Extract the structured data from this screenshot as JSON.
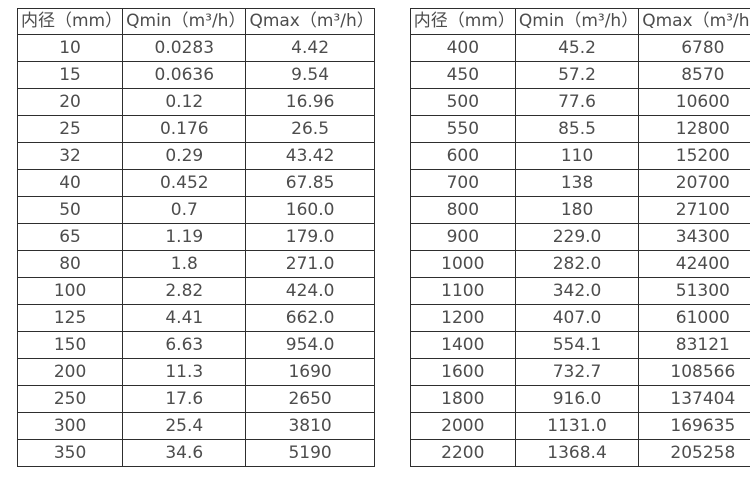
{
  "colors": {
    "background": "#ffffff",
    "border": "#2e2e2e",
    "text": "#4d4d4d"
  },
  "tables": [
    {
      "name": "diameter-flow-table-small",
      "headers": [
        "内径（mm）",
        "Qmin（m³/h）",
        "Qmax（m³/h）"
      ],
      "rows": [
        [
          "10",
          "0.0283",
          "4.42"
        ],
        [
          "15",
          "0.0636",
          "9.54"
        ],
        [
          "20",
          "0.12",
          "16.96"
        ],
        [
          "25",
          "0.176",
          "26.5"
        ],
        [
          "32",
          "0.29",
          "43.42"
        ],
        [
          "40",
          "0.452",
          "67.85"
        ],
        [
          "50",
          "0.7",
          "160.0"
        ],
        [
          "65",
          "1.19",
          "179.0"
        ],
        [
          "80",
          "1.8",
          "271.0"
        ],
        [
          "100",
          "2.82",
          "424.0"
        ],
        [
          "125",
          "4.41",
          "662.0"
        ],
        [
          "150",
          "6.63",
          "954.0"
        ],
        [
          "200",
          "11.3",
          "1690"
        ],
        [
          "250",
          "17.6",
          "2650"
        ],
        [
          "300",
          "25.4",
          "3810"
        ],
        [
          "350",
          "34.6",
          "5190"
        ]
      ]
    },
    {
      "name": "diameter-flow-table-large",
      "headers": [
        "内径（mm）",
        "Qmin（m³/h）",
        "Qmax（m³/h）"
      ],
      "rows": [
        [
          "400",
          "45.2",
          "6780"
        ],
        [
          "450",
          "57.2",
          "8570"
        ],
        [
          "500",
          "77.6",
          "10600"
        ],
        [
          "550",
          "85.5",
          "12800"
        ],
        [
          "600",
          "110",
          "15200"
        ],
        [
          "700",
          "138",
          "20700"
        ],
        [
          "800",
          "180",
          "27100"
        ],
        [
          "900",
          "229.0",
          "34300"
        ],
        [
          "1000",
          "282.0",
          "42400"
        ],
        [
          "1100",
          "342.0",
          "51300"
        ],
        [
          "1200",
          "407.0",
          "61000"
        ],
        [
          "1400",
          "554.1",
          "83121"
        ],
        [
          "1600",
          "732.7",
          "108566"
        ],
        [
          "1800",
          "916.0",
          "137404"
        ],
        [
          "2000",
          "1131.0",
          "169635"
        ],
        [
          "2200",
          "1368.4",
          "205258"
        ]
      ]
    }
  ]
}
